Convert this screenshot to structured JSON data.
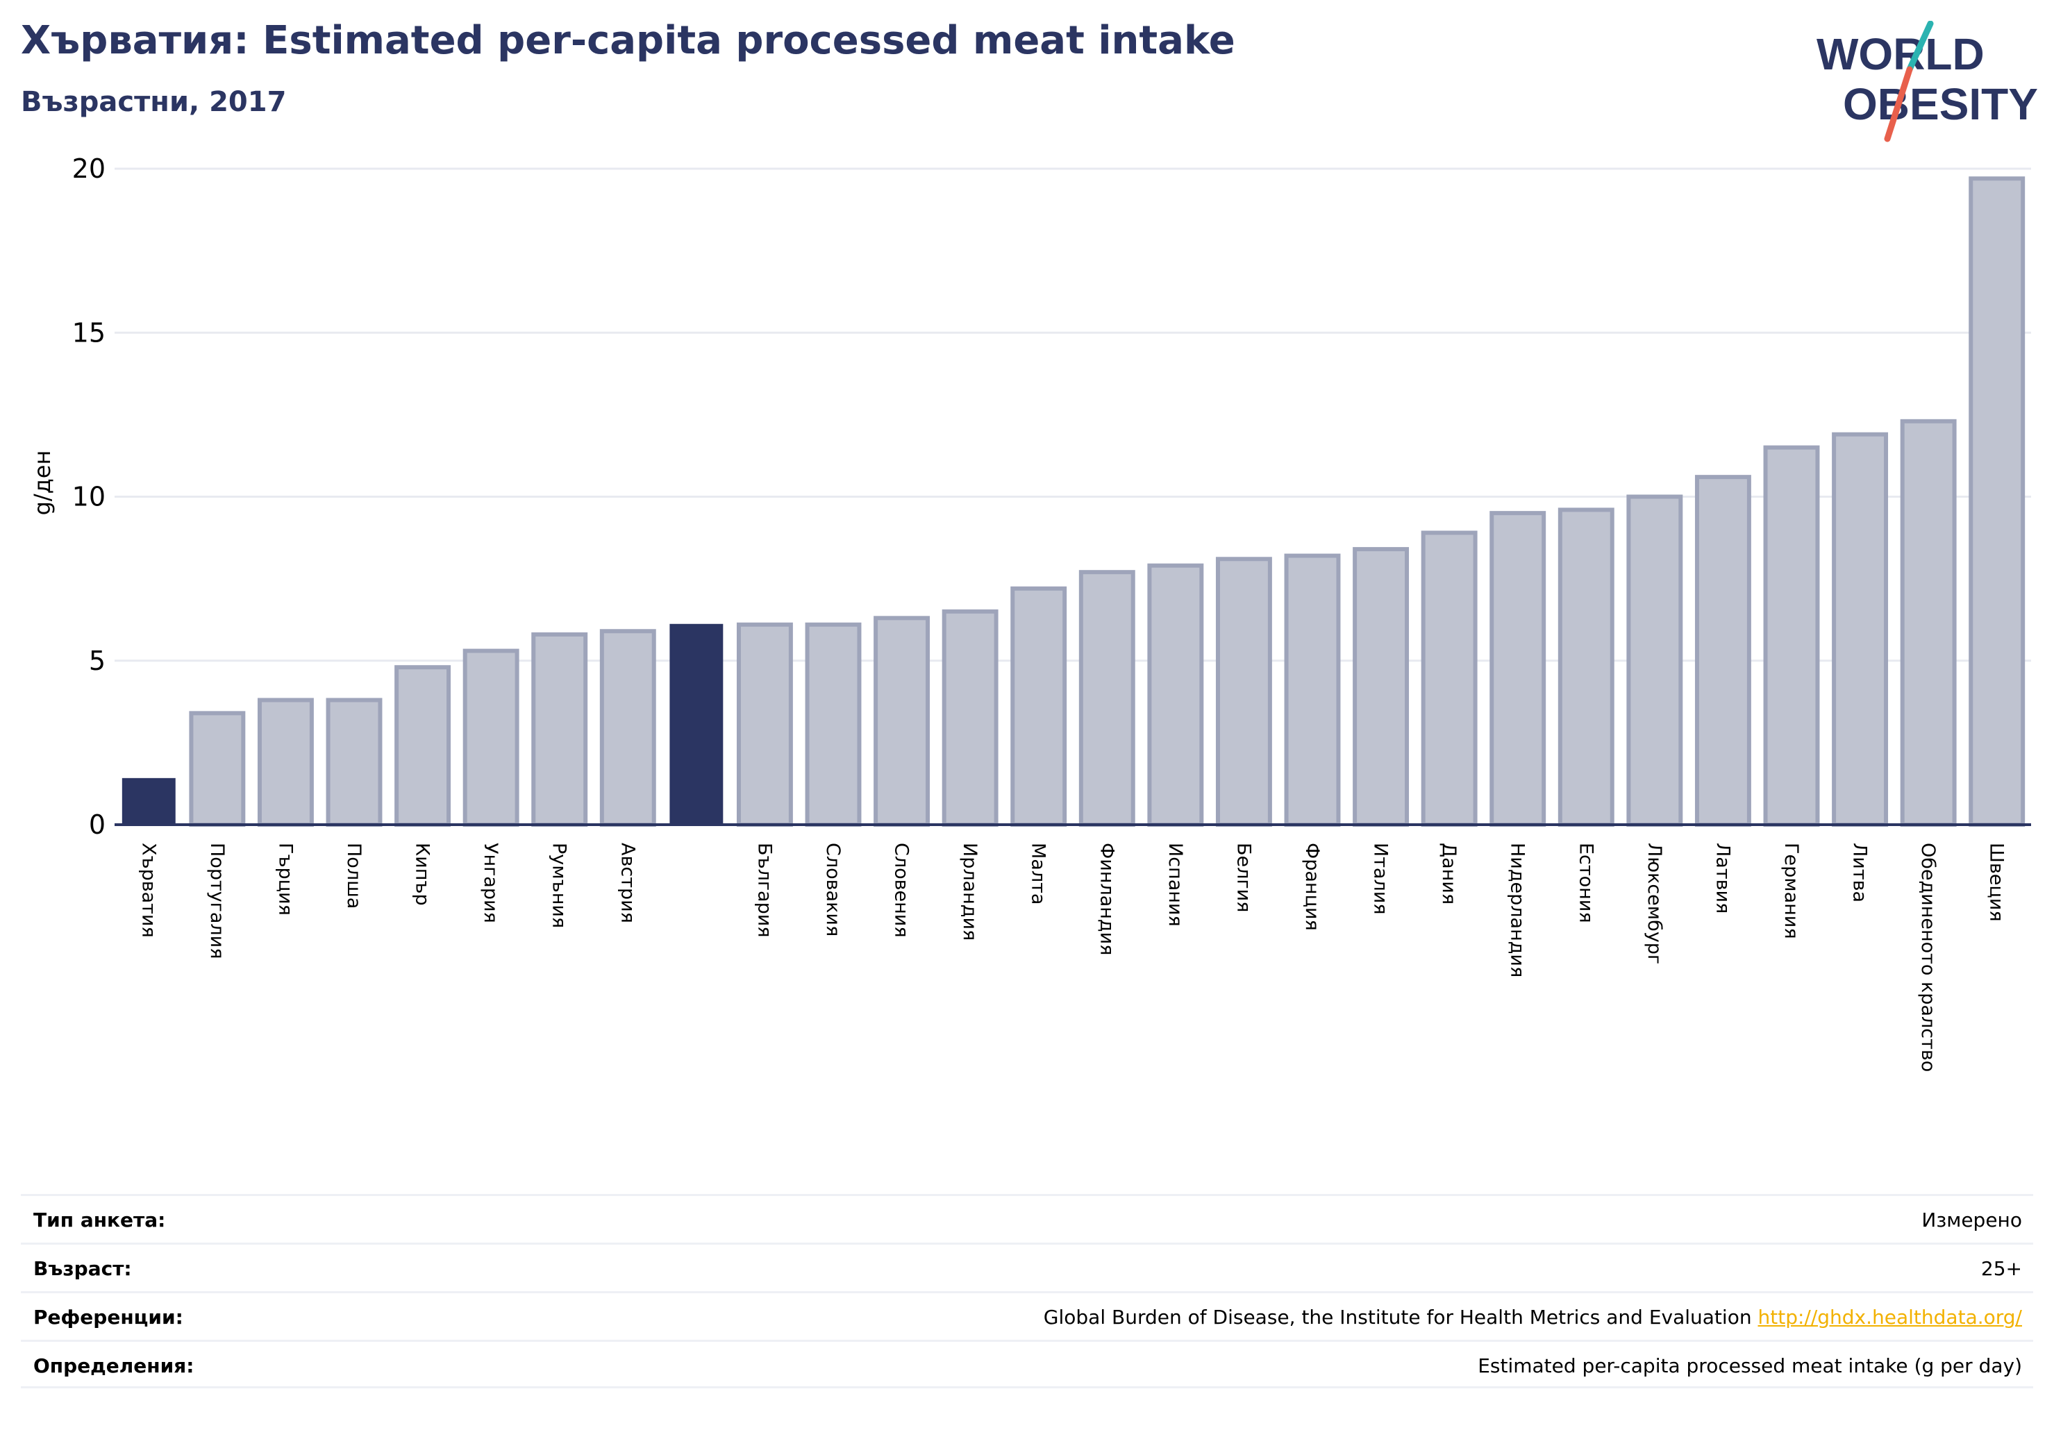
{
  "header": {
    "title": "Хърватия: Estimated per-capita processed meat intake",
    "subtitle": "Възрастни, 2017"
  },
  "logo": {
    "line1": "WORLD",
    "line2": "OBESITY",
    "accent_teal": "#2bb3b1",
    "accent_coral": "#e8604c"
  },
  "colors": {
    "highlight": "#2b3562",
    "bar_fill": "#bfc3d0",
    "bar_stroke": "#9ea4ba",
    "grid": "#e8eaf0",
    "axis": "#2b3562"
  },
  "chart_data": {
    "type": "bar",
    "ylabel": "g/ден",
    "ylim": [
      0,
      20
    ],
    "yticks": [
      0,
      5,
      10,
      15,
      20
    ],
    "grid": true,
    "highlight_category": "Хърватия",
    "categories": [
      "Хърватия",
      "Португалия",
      "Гърция",
      "Полша",
      "Кипър",
      "Унгария",
      "Румъния",
      "Австрия",
      "",
      "България",
      "Словакия",
      "Словения",
      "Ирландия",
      "Малта",
      "Финландия",
      "Испания",
      "Белгия",
      "Франция",
      "Италия",
      "Дания",
      "Нидерландия",
      "Естония",
      "Люксембург",
      "Латвия",
      "Германия",
      "Литва",
      "Обединеното кралство",
      "Швеция"
    ],
    "values": [
      1.4,
      3.4,
      3.8,
      3.8,
      4.8,
      5.3,
      5.8,
      5.9,
      6.1,
      6.1,
      6.1,
      6.3,
      6.5,
      7.2,
      7.7,
      7.9,
      8.1,
      8.2,
      8.4,
      8.9,
      9.5,
      9.6,
      10.0,
      10.6,
      11.5,
      11.9,
      12.3,
      19.7
    ],
    "dark_indices": [
      0,
      8
    ]
  },
  "meta": {
    "rows": [
      {
        "label": "Тип анкета:",
        "value": "Измерено"
      },
      {
        "label": "Възраст:",
        "value": "25+"
      },
      {
        "label": "Референции:",
        "value": "Global Burden of Disease, the Institute for Health Metrics and Evaluation",
        "link": "http://ghdx.healthdata.org/"
      },
      {
        "label": "Определения:",
        "value": "Estimated per-capita processed meat intake (g per day)"
      }
    ]
  }
}
